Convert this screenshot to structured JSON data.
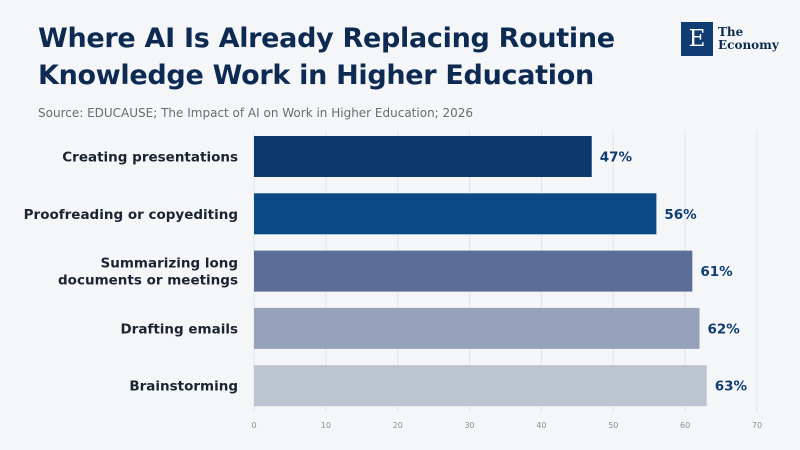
{
  "header": {
    "title": "Where AI Is Already Replacing Routine Knowledge Work in Higher Education",
    "source": "Source: EDUCAUSE; The Impact of AI on Work in Higher Education; 2026"
  },
  "logo": {
    "mark": "E",
    "line1": "The",
    "line2": "Economy"
  },
  "chart_data": {
    "type": "bar",
    "orientation": "horizontal",
    "title": "Where AI Is Already Replacing Routine Knowledge Work in Higher Education",
    "categories": [
      [
        "Creating presentations"
      ],
      [
        "Proofreading or copyediting"
      ],
      [
        "Summarizing long",
        "documents or meetings"
      ],
      [
        "Drafting emails"
      ],
      [
        "Brainstorming"
      ]
    ],
    "values": [
      47,
      56,
      61,
      62,
      63
    ],
    "value_labels": [
      "47%",
      "56%",
      "61%",
      "62%",
      "63%"
    ],
    "bar_colors": [
      "#0d3a6e",
      "#0b4a86",
      "#5b6e98",
      "#96a2bb",
      "#bcc3d1"
    ],
    "xlim": [
      0,
      70
    ],
    "xticks": [
      0,
      10,
      20,
      30,
      40,
      50,
      60,
      70
    ],
    "grid": "vertical",
    "legend": "none"
  }
}
